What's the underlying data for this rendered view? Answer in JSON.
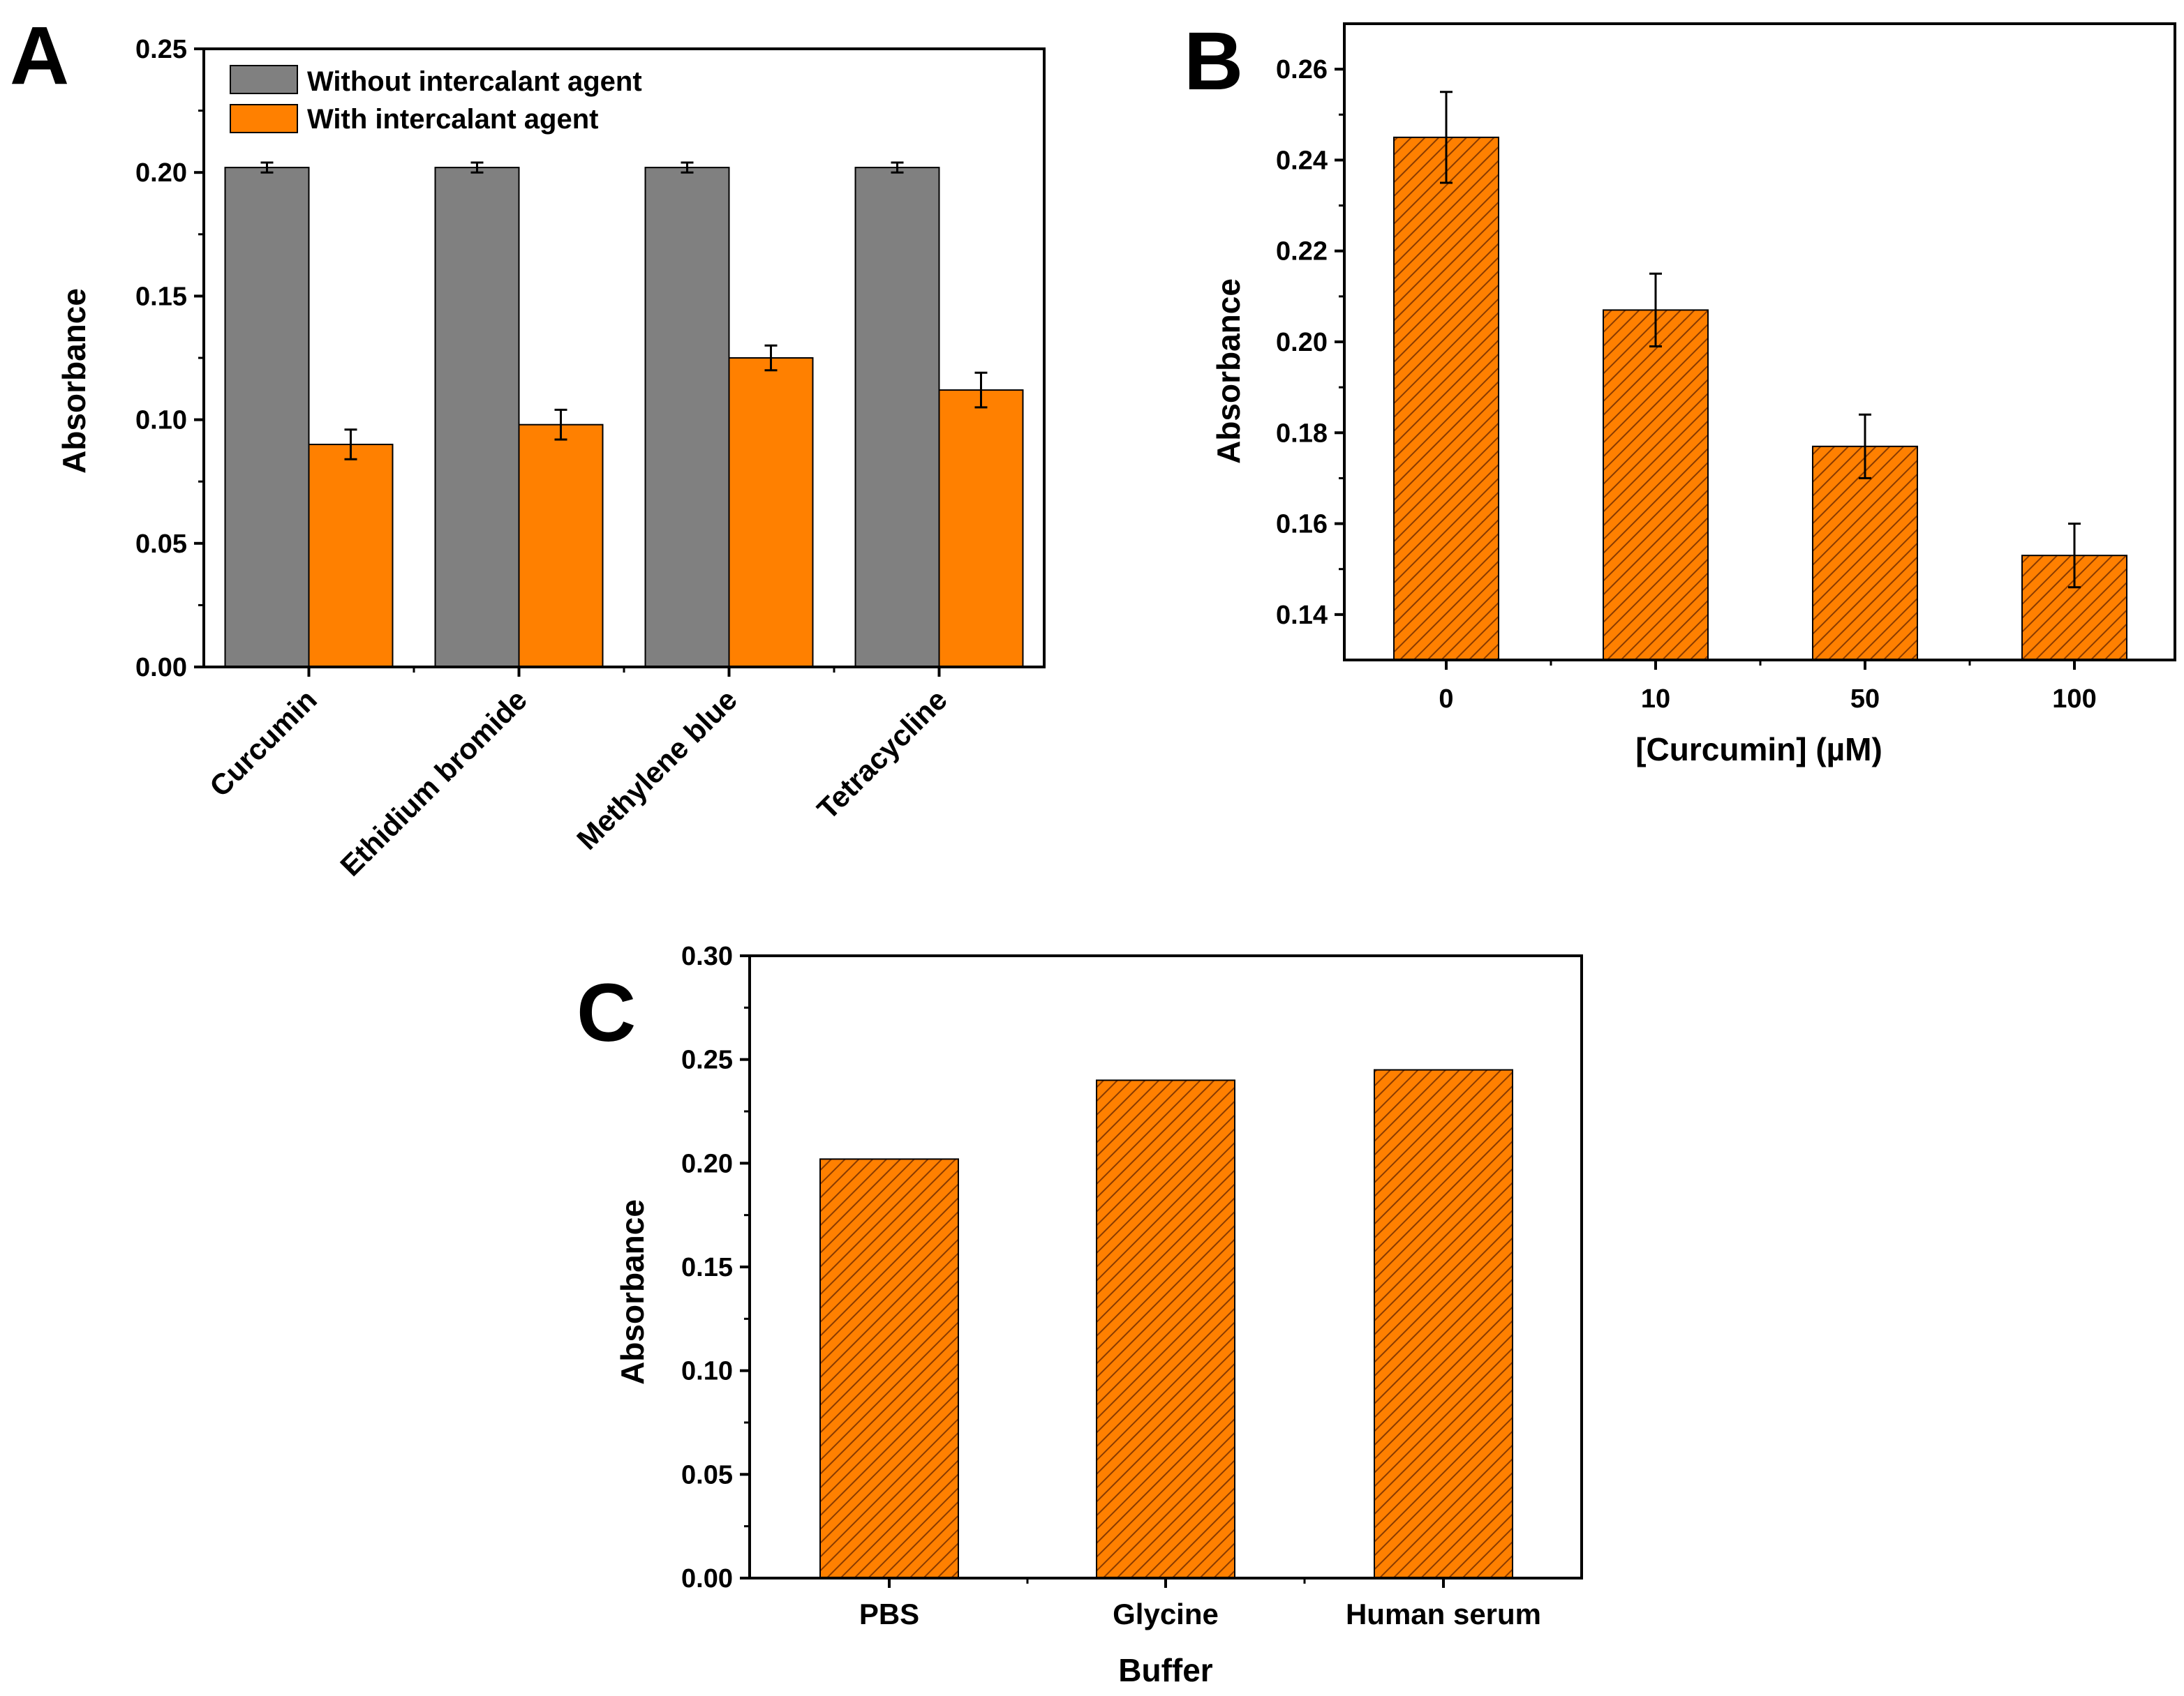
{
  "figure": {
    "hatch_color": "#8a3b00"
  },
  "chart_data": [
    {
      "id": "A",
      "panel_label": "A",
      "type": "bar",
      "title": "",
      "xlabel": "",
      "ylabel": "Absorbance",
      "ylim": [
        0,
        0.25
      ],
      "yticks": [
        "0.00",
        "0.05",
        "0.10",
        "0.15",
        "0.20",
        "0.25"
      ],
      "categories": [
        "Curcumin",
        "Ethidium bromide",
        "Methylene blue",
        "Tetracycline"
      ],
      "legend_position": "top-left",
      "series": [
        {
          "name": "Without intercalant agent",
          "color": "#808080",
          "values": [
            0.202,
            0.202,
            0.202,
            0.202
          ],
          "errors": [
            0.002,
            0.002,
            0.002,
            0.002
          ]
        },
        {
          "name": "With intercalant agent",
          "color": "#ff8000",
          "values": [
            0.09,
            0.098,
            0.125,
            0.112
          ],
          "errors": [
            0.006,
            0.006,
            0.005,
            0.007
          ]
        }
      ]
    },
    {
      "id": "B",
      "panel_label": "B",
      "type": "bar",
      "title": "",
      "xlabel": "[Curcumin] (µM)",
      "ylabel": "Absorbance",
      "ylim": [
        0.13,
        0.27
      ],
      "yticks": [
        "0.14",
        "0.16",
        "0.18",
        "0.20",
        "0.22",
        "0.24",
        "0.26"
      ],
      "categories": [
        "0",
        "10",
        "50",
        "100"
      ],
      "series": [
        {
          "name": "Absorbance",
          "color": "#ff8000",
          "hatched": true,
          "values": [
            0.245,
            0.207,
            0.177,
            0.153
          ],
          "errors": [
            0.01,
            0.008,
            0.007,
            0.007
          ]
        }
      ]
    },
    {
      "id": "C",
      "panel_label": "C",
      "type": "bar",
      "title": "",
      "xlabel": "Buffer",
      "ylabel": "Absorbance",
      "ylim": [
        0,
        0.3
      ],
      "yticks": [
        "0.00",
        "0.05",
        "0.10",
        "0.15",
        "0.20",
        "0.25",
        "0.30"
      ],
      "categories": [
        "PBS",
        "Glycine",
        "Human serum"
      ],
      "series": [
        {
          "name": "Absorbance",
          "color": "#ff8000",
          "hatched": true,
          "values": [
            0.202,
            0.24,
            0.245
          ]
        }
      ]
    }
  ]
}
